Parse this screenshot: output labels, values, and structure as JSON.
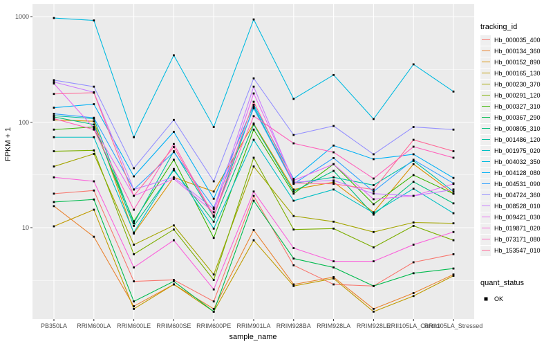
{
  "figure": {
    "background": "#FFFFFF",
    "panel_background": "#EBEBEB",
    "grid_color": "#FFFFFF",
    "tick_text_color": "#4D4D4D",
    "point_color": "#000000"
  },
  "chart_data": {
    "type": "line",
    "title": "",
    "xlabel": "sample_name",
    "ylabel": "FPKM + 1",
    "y_scale": "log10",
    "grid": true,
    "legend_position": "right",
    "point_shape": "filled-square",
    "y_ticks": [
      {
        "label": "1000",
        "value": 1000
      },
      {
        "label": "100",
        "value": 100
      },
      {
        "label": "10",
        "value": 10
      }
    ],
    "y_minor_ticks": [
      3.162,
      31.62,
      316.2
    ],
    "ylim": [
      1.35,
      1300
    ],
    "categories": [
      "PB350LA",
      "RRIM600LA",
      "RRIM600LE",
      "RRIM600SE",
      "RRIM600PE",
      "RRIM901LA",
      "RRIM928BA",
      "RRIM928LA",
      "RRIM928LE",
      "RRII105LA_Control",
      "RRII105LA_Stressed"
    ],
    "series": [
      {
        "name": "Hb_000035_400",
        "color": "#F8766D",
        "values": [
          21,
          22.5,
          3.1,
          3.2,
          2.0,
          20,
          4.4,
          2.9,
          2.8,
          4.7,
          5.6
        ]
      },
      {
        "name": "Hb_000134_360",
        "color": "#EA8331",
        "values": [
          16,
          8.2,
          1.8,
          2.9,
          1.7,
          9.5,
          2.9,
          3.4,
          1.7,
          2.4,
          3.6
        ]
      },
      {
        "name": "Hb_000152_890",
        "color": "#D89000",
        "values": [
          105,
          102,
          8.8,
          30,
          22,
          97,
          23,
          27,
          14,
          40,
          21
        ]
      },
      {
        "name": "Hb_000165_130",
        "color": "#C09B00",
        "values": [
          10.3,
          14.8,
          1.7,
          2.9,
          1.6,
          7.6,
          2.8,
          3.3,
          1.6,
          2.25,
          3.5
        ]
      },
      {
        "name": "Hb_000230_370",
        "color": "#A3A500",
        "values": [
          38,
          50,
          6.9,
          10.5,
          3.6,
          38,
          12.9,
          11.4,
          9.1,
          11.2,
          11
        ]
      },
      {
        "name": "Hb_000291_120",
        "color": "#7CAE00",
        "values": [
          53,
          54,
          5.6,
          9.6,
          3.2,
          46,
          9.6,
          9.8,
          6.5,
          10.4,
          7.6
        ]
      },
      {
        "name": "Hb_000327_310",
        "color": "#39B600",
        "values": [
          85,
          90,
          11.5,
          44,
          8.0,
          85,
          21,
          40,
          16.7,
          31.5,
          21
        ]
      },
      {
        "name": "Hb_000367_290",
        "color": "#00BB4E",
        "values": [
          17.5,
          18.5,
          2.0,
          3.1,
          1.6,
          18,
          5.1,
          4.2,
          2.8,
          3.7,
          4.1
        ]
      },
      {
        "name": "Hb_000805_310",
        "color": "#00BF7D",
        "values": [
          112,
          95,
          10.4,
          35,
          11.4,
          95,
          22,
          34.5,
          13.3,
          27.2,
          17
        ]
      },
      {
        "name": "Hb_001486_120",
        "color": "#00C1A3",
        "values": [
          115,
          108,
          11,
          53,
          12.7,
          140,
          26.3,
          30,
          25.3,
          43,
          22
        ]
      },
      {
        "name": "Hb_001975_020",
        "color": "#00BFC4",
        "values": [
          72,
          72,
          9.0,
          36,
          9.8,
          68,
          18,
          23,
          13.8,
          23.4,
          13.7
        ]
      },
      {
        "name": "Hb_004032_350",
        "color": "#00BAE0",
        "values": [
          970,
          920,
          72,
          430,
          90,
          940,
          166,
          280,
          107,
          353,
          195
        ]
      },
      {
        "name": "Hb_004128_080",
        "color": "#00B0F6",
        "values": [
          137,
          148,
          30.6,
          81,
          18.8,
          146,
          29,
          60,
          44.6,
          49.6,
          29.6
        ]
      },
      {
        "name": "Hb_004531_090",
        "color": "#35A2FF",
        "values": [
          120,
          110,
          23,
          52,
          15.5,
          135,
          26,
          45.7,
          22,
          44,
          26.3
        ]
      },
      {
        "name": "Hb_004724_360",
        "color": "#9590FF",
        "values": [
          250,
          217,
          36.6,
          105,
          27.5,
          260,
          75.6,
          92,
          49.6,
          90,
          85
        ]
      },
      {
        "name": "Hb_008528_010",
        "color": "#C77CFF",
        "values": [
          240,
          192,
          23,
          30,
          15,
          217,
          27,
          28,
          21,
          20,
          23
        ]
      },
      {
        "name": "Hb_009421_030",
        "color": "#E76BF3",
        "values": [
          232,
          88,
          20,
          29,
          14,
          187,
          28,
          40,
          18.6,
          20,
          26
        ]
      },
      {
        "name": "Hb_019871_020",
        "color": "#FA62DB",
        "values": [
          30,
          27.5,
          4.2,
          7.6,
          2.6,
          22,
          6.4,
          4.8,
          4.8,
          6.9,
          9.1
        ]
      },
      {
        "name": "Hb_073171_080",
        "color": "#FF62BC",
        "values": [
          108,
          85,
          14.8,
          62,
          13,
          114,
          63,
          51.8,
          29.2,
          58.5,
          46
        ]
      },
      {
        "name": "Hb_153547_010",
        "color": "#FF6A98",
        "values": [
          185,
          190,
          20,
          58,
          12.9,
          156,
          26.5,
          26,
          23,
          68,
          53
        ]
      }
    ],
    "legend": {
      "color_title": "tracking_id",
      "shape_title": "quant_status",
      "shape_entries": [
        {
          "label": "OK"
        }
      ]
    }
  }
}
